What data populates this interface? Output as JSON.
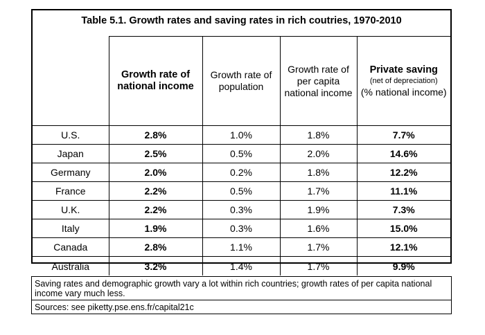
{
  "title": "Table 5.1. Growth rates and saving rates in rich coutries, 1970-2010",
  "headers": {
    "col1": "Growth rate of national income",
    "col2": "Growth rate of population",
    "col3": "Growth rate of per capita national income",
    "col4_title": "Private saving",
    "col4_sub": "(net of depreciation)",
    "col4_unit": "(% national income)"
  },
  "rows": [
    {
      "country": "U.S.",
      "gni": "2.8%",
      "pop": "1.0%",
      "pci": "1.8%",
      "saving": "7.7%"
    },
    {
      "country": "Japan",
      "gni": "2.5%",
      "pop": "0.5%",
      "pci": "2.0%",
      "saving": "14.6%"
    },
    {
      "country": "Germany",
      "gni": "2.0%",
      "pop": "0.2%",
      "pci": "1.8%",
      "saving": "12.2%"
    },
    {
      "country": "France",
      "gni": "2.2%",
      "pop": "0.5%",
      "pci": "1.7%",
      "saving": "11.1%"
    },
    {
      "country": "U.K.",
      "gni": "2.2%",
      "pop": "0.3%",
      "pci": "1.9%",
      "saving": "7.3%"
    },
    {
      "country": "Italy",
      "gni": "1.9%",
      "pop": "0.3%",
      "pci": "1.6%",
      "saving": "15.0%"
    },
    {
      "country": "Canada",
      "gni": "2.8%",
      "pop": "1.1%",
      "pci": "1.7%",
      "saving": "12.1%"
    },
    {
      "country": "Australia",
      "gni": "3.2%",
      "pop": "1.4%",
      "pci": "1.7%",
      "saving": "9.9%"
    }
  ],
  "note": "Saving rates and demographic growth vary a lot within rich countries; growth rates of per capita national income vary much less.",
  "sources": "Sources: see piketty.pse.ens.fr/capital21c"
}
